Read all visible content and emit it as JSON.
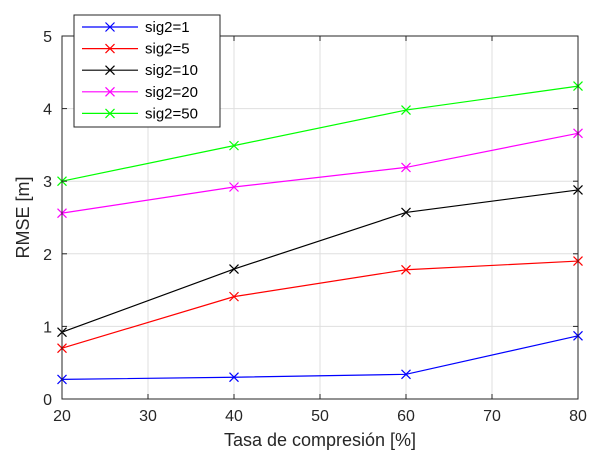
{
  "chart_data": {
    "type": "line",
    "title": "",
    "xlabel": "Tasa de compresión [%]",
    "ylabel": "RMSE [m]",
    "xlim": [
      20,
      80
    ],
    "ylim": [
      0,
      5
    ],
    "xticks": [
      20,
      30,
      40,
      50,
      60,
      70,
      80
    ],
    "yticks": [
      0,
      1,
      2,
      3,
      4,
      5
    ],
    "grid": true,
    "legend_position": "top-left",
    "marker": "x",
    "x": [
      20,
      40,
      60,
      80
    ],
    "series": [
      {
        "name": "sig2=1",
        "color": "#0000ff",
        "values": [
          0.27,
          0.3,
          0.34,
          0.87
        ]
      },
      {
        "name": "sig2=5",
        "color": "#ff0000",
        "values": [
          0.7,
          1.41,
          1.78,
          1.9
        ]
      },
      {
        "name": "sig2=10",
        "color": "#000000",
        "values": [
          0.92,
          1.79,
          2.57,
          2.88
        ]
      },
      {
        "name": "sig2=20",
        "color": "#ff00ff",
        "values": [
          2.56,
          2.92,
          3.19,
          3.66
        ]
      },
      {
        "name": "sig2=50",
        "color": "#00ff00",
        "values": [
          3.0,
          3.49,
          3.98,
          4.31
        ]
      }
    ]
  }
}
